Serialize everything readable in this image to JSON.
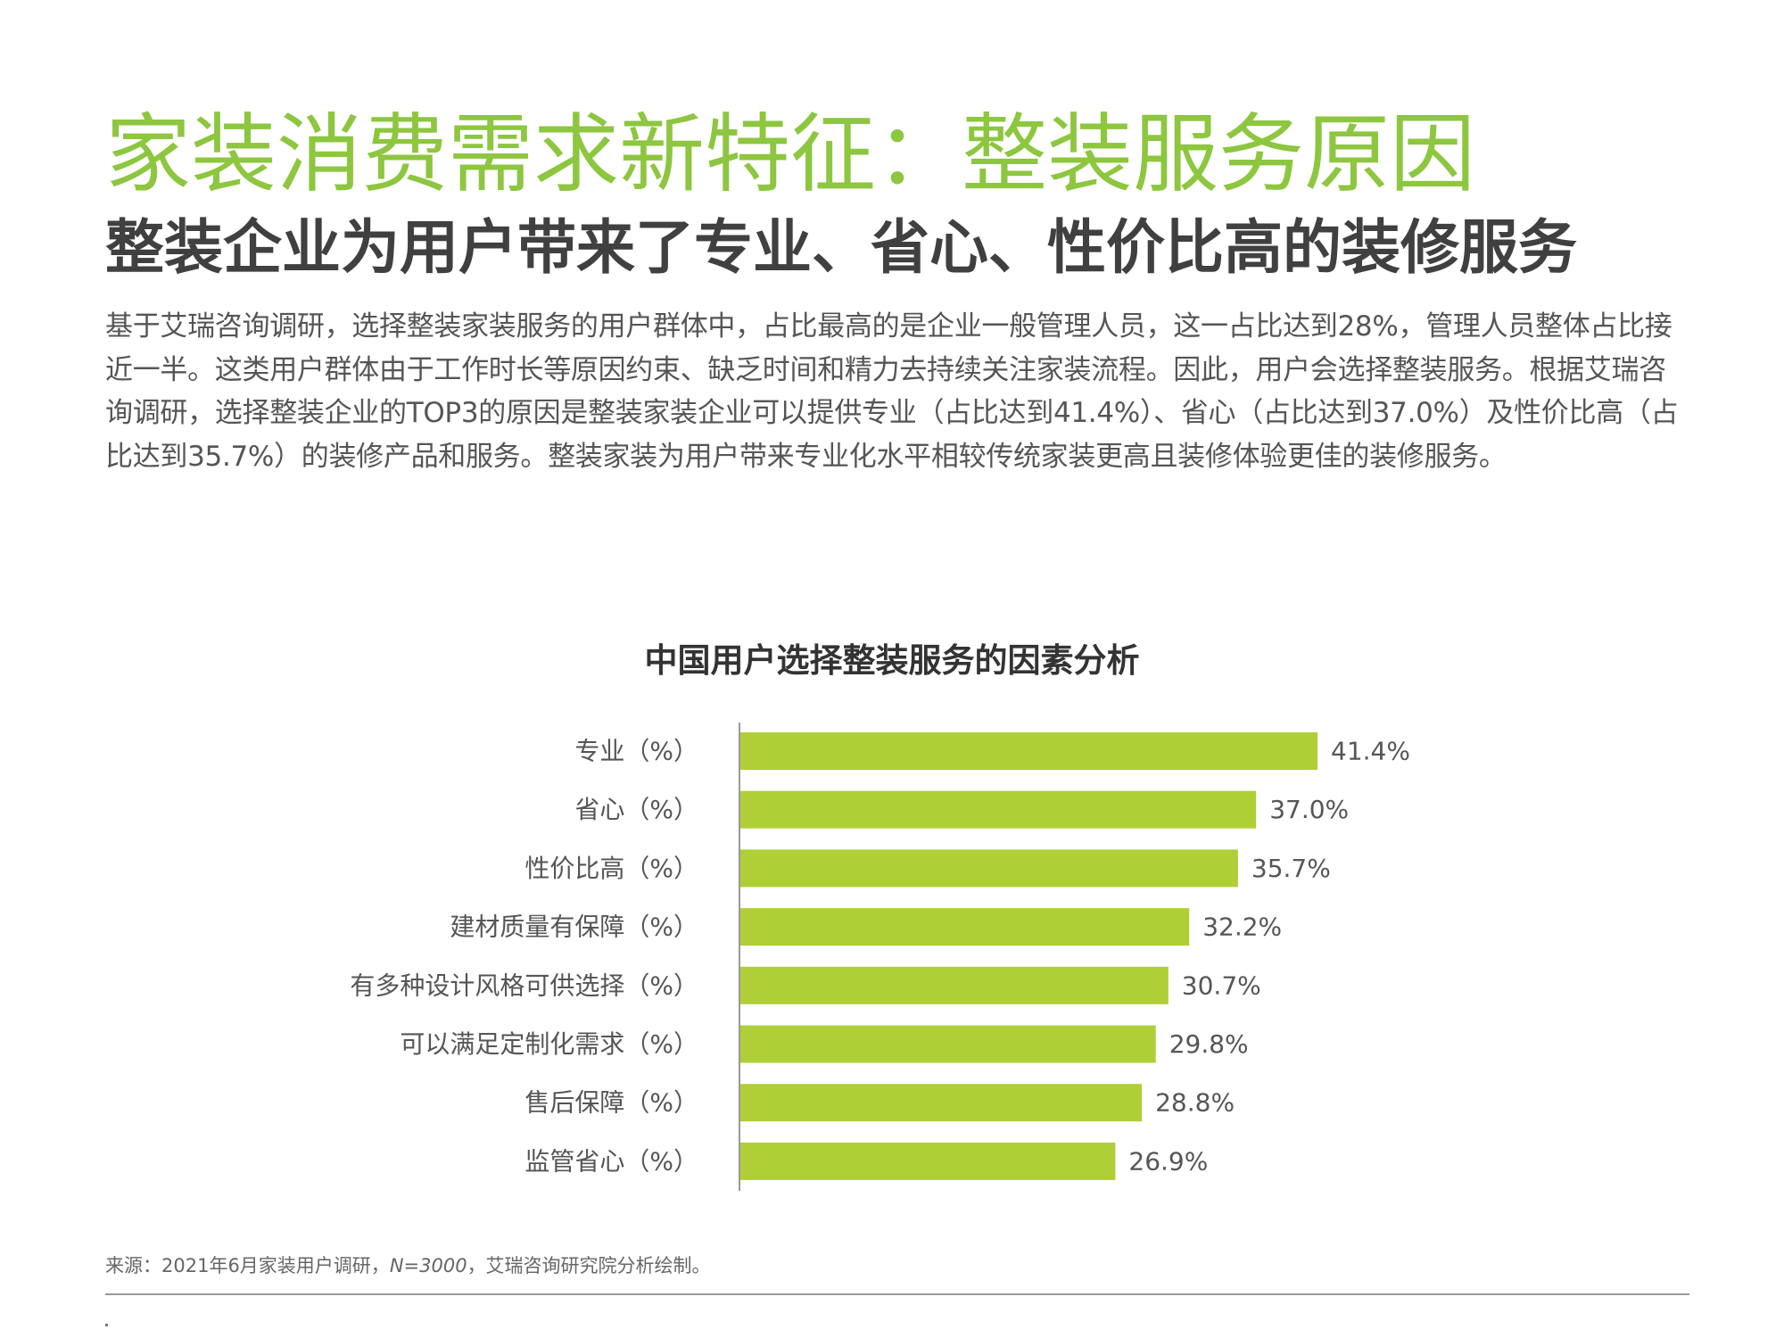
{
  "header": {
    "title": "家装消费需求新特征：整装服务原因",
    "subtitle": "整装企业为用户带来了专业、省心、性价比高的装修服务"
  },
  "body": {
    "paragraph": "基于艾瑞咨询调研，选择整装家装服务的用户群体中，占比最高的是企业一般管理人员，这一占比达到28%，管理人员整体占比接近一半。这类用户群体由于工作时长等原因约束、缺乏时间和精力去持续关注家装流程。因此，用户会选择整装服务。根据艾瑞咨询调研，选择整装企业的TOP3的原因是整装家装企业可以提供专业（占比达到41.4%）、省心（占比达到37.0%）及性价比高（占比达到35.7%）的装修产品和服务。整装家装为用户带来专业化水平相较传统家装更高且装修体验更佳的装修服务。"
  },
  "chart_data": {
    "type": "bar",
    "orientation": "horizontal",
    "title": "中国用户选择整装服务的因素分析",
    "categories": [
      "专业（%）",
      "省心（%）",
      "性价比高（%）",
      "建材质量有保障（%）",
      "有多种设计风格可供选择（%）",
      "可以满足定制化需求（%）",
      "售后保障（%）",
      "监管省心（%）"
    ],
    "values": [
      41.4,
      37.0,
      35.7,
      32.2,
      30.7,
      29.8,
      28.8,
      26.9
    ],
    "data_labels": [
      "41.4%",
      "37.0%",
      "35.7%",
      "32.2%",
      "30.7%",
      "29.8%",
      "28.8%",
      "26.9%"
    ],
    "xlim": [
      0,
      41.4
    ],
    "grid": false,
    "legend": "none",
    "bar_color": "#aecf35",
    "label_color": "#555555",
    "axis_color": "#999999"
  },
  "footer": {
    "source_prefix": "来源：2021年6月家装用户调研，",
    "sample_size": "N=3000",
    "source_suffix": "，艾瑞咨询研究院分析绘制。"
  }
}
